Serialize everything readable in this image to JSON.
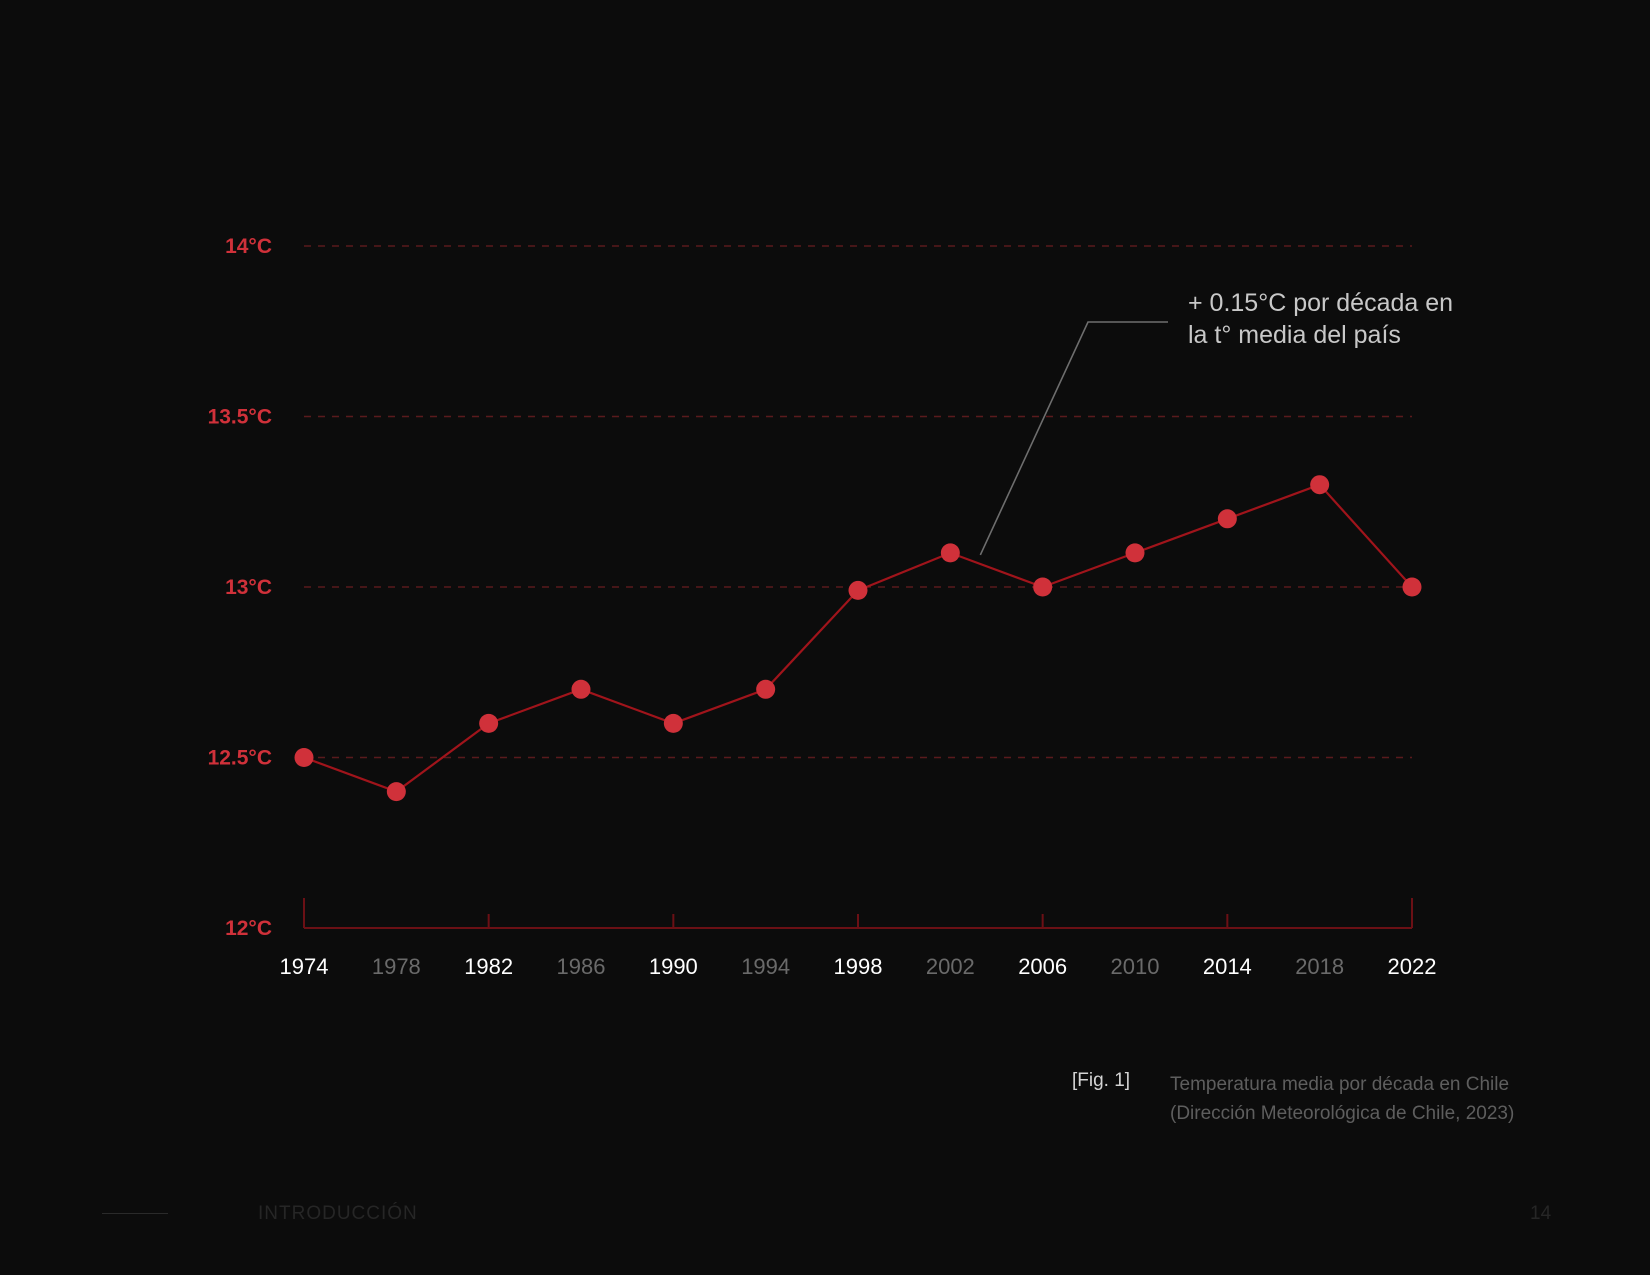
{
  "colors": {
    "background": "#0c0c0c",
    "accent": "#d0313a",
    "line": "#a0141b",
    "grid": "#5a1a1d",
    "axis": "#6b1015",
    "tick_label_bright": "#ffffff",
    "tick_label_dim": "#6a6a6a",
    "annotation": "#c8c8c8",
    "leader": "#6e6e6e"
  },
  "chart_data": {
    "type": "line",
    "x": [
      1974,
      1978,
      1982,
      1986,
      1990,
      1994,
      1998,
      2002,
      2006,
      2010,
      2014,
      2018,
      2022
    ],
    "series": [
      {
        "values": [
          12.5,
          12.4,
          12.6,
          12.7,
          12.6,
          12.7,
          12.99,
          13.1,
          13.0,
          13.1,
          13.2,
          13.3,
          13.0
        ]
      }
    ],
    "ylim": [
      12,
      14
    ],
    "yticks": [
      12,
      12.5,
      13,
      13.5,
      14
    ],
    "ytick_labels": [
      "12°C",
      "12.5°C",
      "13°C",
      "13.5°C",
      "14°C"
    ],
    "xtick_labels": [
      "1974",
      "1978",
      "1982",
      "1986",
      "1990",
      "1994",
      "1998",
      "2002",
      "2006",
      "2010",
      "2014",
      "2018",
      "2022"
    ],
    "xtick_highlighted": [
      true,
      false,
      true,
      false,
      true,
      false,
      true,
      false,
      true,
      false,
      true,
      false,
      true
    ],
    "grid": "horizontal dashed",
    "annotation": {
      "lines": [
        "+ 0.15°C por década en",
        "la t° media del país"
      ],
      "x": 2003.3,
      "y": 13.1
    }
  },
  "caption": {
    "label": "[Fig. 1]",
    "line1": "Temperatura media por década en Chile",
    "line2": "(Dirección Meteorológica de Chile, 2023)"
  },
  "footer": {
    "section": "INTRODUCCIÓN",
    "page_number": "14"
  }
}
